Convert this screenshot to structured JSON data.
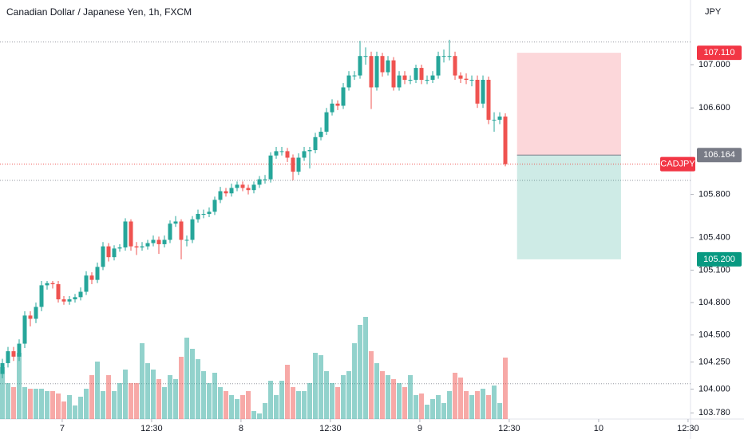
{
  "chart_data": {
    "type": "candlestick",
    "title": "Canadian Dollar / Japanese Yen, 1h, FXCM",
    "currency": "JPY",
    "symbol_label": "CADJPY",
    "up_color": "#26a69a",
    "down_color": "#ef5350",
    "xlim": [
      -0.43,
      123.14
    ],
    "ylim": [
      103.723,
      107.598
    ],
    "xticks": [
      {
        "value": 10.7,
        "label": "7"
      },
      {
        "value": 26.7,
        "label": "12:30"
      },
      {
        "value": 42.7,
        "label": "8"
      },
      {
        "value": 58.7,
        "label": "12:30"
      },
      {
        "value": 74.7,
        "label": "9"
      },
      {
        "value": 90.7,
        "label": "12:30"
      },
      {
        "value": 106.7,
        "label": "10"
      },
      {
        "value": 122.7,
        "label": "12:30"
      }
    ],
    "yticks": [
      {
        "value": 107.0,
        "label": "107.000"
      },
      {
        "value": 106.6,
        "label": "106.600"
      },
      {
        "value": 105.8,
        "label": "105.800"
      },
      {
        "value": 105.4,
        "label": "105.400"
      },
      {
        "value": 105.1,
        "label": "105.100"
      },
      {
        "value": 104.8,
        "label": "104.800"
      },
      {
        "value": 104.5,
        "label": "104.500"
      },
      {
        "value": 104.25,
        "label": "104.250"
      },
      {
        "value": 104.0,
        "label": "104.000"
      },
      {
        "value": 103.78,
        "label": "103.780"
      }
    ],
    "last_price": 106.08,
    "levels": [
      107.21,
      105.93,
      104.05
    ],
    "position": {
      "entry": 106.164,
      "stop": 107.11,
      "target": 105.2,
      "start": 92.1,
      "end": 110.7,
      "value_labels": {
        "entry": "106.164",
        "stop": "107.110",
        "target": "105.200"
      }
    },
    "open": [
      104.14,
      104.24,
      104.35,
      104.3,
      104.42,
      104.68,
      104.65,
      104.76,
      104.96,
      104.98,
      104.97,
      104.83,
      104.81,
      104.83,
      104.85,
      104.9,
      105.05,
      105.01,
      105.13,
      105.32,
      105.22,
      105.3,
      105.31,
      105.55,
      105.32,
      105.31,
      105.32,
      105.35,
      105.38,
      105.34,
      105.38,
      105.53,
      105.55,
      105.38,
      105.38,
      105.57,
      105.62,
      105.62,
      105.64,
      105.75,
      105.83,
      105.81,
      105.86,
      105.89,
      105.86,
      105.84,
      105.89,
      105.94,
      105.94,
      106.16,
      106.2,
      106.2,
      106.14,
      106.01,
      106.14,
      106.2,
      106.21,
      106.33,
      106.38,
      106.56,
      106.64,
      106.62,
      106.79,
      106.9,
      106.9,
      107.08,
      107.08,
      106.79,
      107.08,
      106.93,
      107.04,
      106.79,
      106.9,
      106.86,
      106.86,
      106.97,
      106.86,
      106.86,
      106.9,
      107.08,
      107.08,
      107.08,
      106.9,
      106.87,
      106.86,
      106.86,
      106.64,
      106.86,
      106.49,
      106.49,
      106.52
    ],
    "high": [
      104.28,
      104.39,
      104.39,
      104.46,
      104.72,
      104.72,
      104.8,
      105.0,
      105.0,
      105.0,
      105.0,
      104.86,
      104.86,
      104.88,
      104.94,
      105.09,
      105.08,
      105.17,
      105.36,
      105.35,
      105.33,
      105.34,
      105.58,
      105.57,
      105.36,
      105.36,
      105.38,
      105.42,
      105.41,
      105.42,
      105.56,
      105.6,
      105.57,
      105.42,
      105.6,
      105.66,
      105.66,
      105.68,
      105.78,
      105.87,
      105.86,
      105.9,
      105.92,
      105.92,
      105.89,
      105.92,
      105.97,
      105.98,
      106.19,
      106.24,
      106.24,
      106.23,
      106.17,
      106.18,
      106.24,
      106.24,
      106.37,
      106.42,
      106.6,
      106.68,
      106.67,
      106.83,
      106.94,
      106.94,
      107.22,
      107.16,
      107.12,
      107.12,
      107.11,
      107.08,
      107.07,
      106.94,
      106.94,
      106.9,
      107.0,
      107.0,
      106.9,
      106.94,
      107.12,
      107.14,
      107.23,
      107.12,
      106.93,
      106.92,
      106.9,
      106.9,
      106.9,
      106.89,
      106.56,
      106.56,
      106.55
    ],
    "low": [
      104.1,
      104.2,
      104.26,
      104.26,
      104.38,
      104.58,
      104.61,
      104.72,
      104.92,
      104.93,
      104.8,
      104.78,
      104.78,
      104.8,
      104.82,
      104.87,
      104.97,
      104.98,
      105.1,
      105.18,
      105.19,
      105.27,
      105.28,
      105.28,
      105.24,
      105.28,
      105.29,
      105.32,
      105.25,
      105.31,
      105.35,
      105.5,
      105.2,
      105.32,
      105.35,
      105.54,
      105.58,
      105.59,
      105.61,
      105.72,
      105.78,
      105.78,
      105.83,
      105.83,
      105.8,
      105.81,
      105.86,
      105.9,
      105.91,
      106.13,
      106.16,
      106.1,
      105.93,
      105.98,
      106.11,
      106.04,
      106.18,
      106.3,
      106.35,
      106.53,
      106.58,
      106.59,
      106.76,
      106.86,
      106.87,
      107.0,
      106.59,
      106.76,
      106.89,
      106.9,
      106.76,
      106.76,
      106.82,
      106.82,
      106.83,
      106.82,
      106.82,
      106.83,
      106.87,
      107.02,
      107.04,
      106.86,
      106.83,
      106.82,
      106.8,
      106.6,
      106.6,
      106.45,
      106.38,
      106.45,
      106.06
    ],
    "close": [
      104.24,
      104.35,
      104.3,
      104.42,
      104.68,
      104.65,
      104.76,
      104.96,
      104.98,
      104.97,
      104.83,
      104.81,
      104.83,
      104.85,
      104.9,
      105.05,
      105.01,
      105.13,
      105.32,
      105.22,
      105.3,
      105.31,
      105.55,
      105.32,
      105.31,
      105.32,
      105.35,
      105.38,
      105.34,
      105.38,
      105.53,
      105.55,
      105.38,
      105.38,
      105.57,
      105.62,
      105.62,
      105.64,
      105.75,
      105.83,
      105.81,
      105.86,
      105.89,
      105.86,
      105.84,
      105.89,
      105.94,
      105.94,
      106.16,
      106.2,
      106.2,
      106.14,
      106.01,
      106.14,
      106.2,
      106.21,
      106.33,
      106.38,
      106.56,
      106.64,
      106.62,
      106.79,
      106.9,
      106.9,
      107.08,
      107.08,
      106.79,
      107.08,
      106.93,
      107.04,
      106.79,
      106.9,
      106.86,
      106.86,
      106.97,
      106.86,
      106.86,
      106.9,
      107.08,
      107.08,
      107.08,
      106.9,
      106.87,
      106.86,
      106.86,
      106.64,
      106.86,
      106.49,
      106.49,
      106.52,
      106.08
    ],
    "volume": [
      65,
      45,
      40,
      83,
      40,
      38,
      38,
      38,
      35,
      35,
      32,
      22,
      30,
      17,
      28,
      38,
      55,
      72,
      35,
      55,
      35,
      45,
      62,
      45,
      45,
      95,
      70,
      62,
      50,
      40,
      55,
      50,
      78,
      102,
      88,
      75,
      60,
      45,
      58,
      40,
      35,
      30,
      25,
      30,
      35,
      10,
      7,
      20,
      48,
      30,
      48,
      68,
      40,
      35,
      35,
      45,
      83,
      80,
      60,
      45,
      40,
      55,
      60,
      95,
      118,
      128,
      85,
      70,
      60,
      55,
      50,
      45,
      40,
      55,
      30,
      32,
      18,
      25,
      30,
      20,
      35,
      58,
      52,
      35,
      30,
      35,
      38,
      30,
      42,
      20,
      77
    ]
  }
}
